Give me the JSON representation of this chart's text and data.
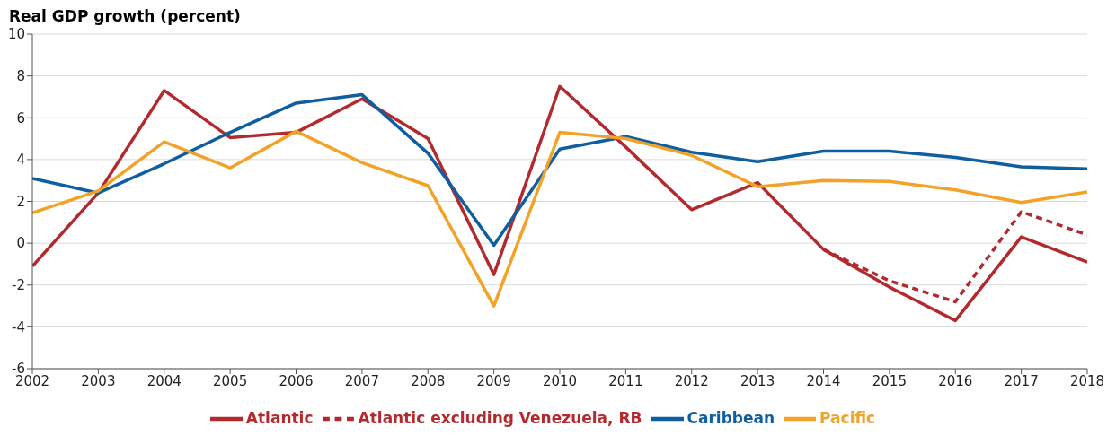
{
  "chart_data": {
    "type": "line",
    "title": "Real GDP growth (percent)",
    "x": [
      2002,
      2003,
      2004,
      2005,
      2006,
      2007,
      2008,
      2009,
      2010,
      2011,
      2012,
      2013,
      2014,
      2015,
      2016,
      2017,
      2018
    ],
    "series": [
      {
        "name": "Atlantic",
        "color": "#b22a2e",
        "values": [
          -1.1,
          2.4,
          7.3,
          5.05,
          5.3,
          6.9,
          5.0,
          -1.5,
          7.5,
          4.6,
          1.6,
          2.9,
          -0.3,
          -2.1,
          -3.7,
          0.3,
          -0.9
        ]
      },
      {
        "name": "Atlantic excluding Venezuela, RB",
        "color": "#b22a2e",
        "line_style": "dashed",
        "values": [
          null,
          null,
          null,
          null,
          null,
          null,
          null,
          null,
          null,
          null,
          null,
          null,
          -0.3,
          -1.8,
          -2.8,
          1.5,
          0.4
        ]
      },
      {
        "name": "Caribbean",
        "color": "#0f5fa0",
        "values": [
          3.1,
          2.4,
          3.8,
          5.3,
          6.7,
          7.1,
          4.3,
          -0.1,
          4.5,
          5.1,
          4.35,
          3.9,
          4.4,
          4.4,
          4.1,
          3.65,
          3.55
        ]
      },
      {
        "name": "Pacific",
        "color": "#f2a226",
        "values": [
          1.45,
          2.5,
          4.85,
          3.6,
          5.35,
          3.85,
          2.75,
          -3.0,
          5.3,
          5.0,
          4.2,
          2.7,
          3.0,
          2.95,
          2.55,
          1.95,
          2.45
        ]
      }
    ],
    "xlim": [
      2002,
      2018
    ],
    "xticks": [
      2002,
      2003,
      2004,
      2005,
      2006,
      2007,
      2008,
      2009,
      2010,
      2011,
      2012,
      2013,
      2014,
      2015,
      2016,
      2017,
      2018
    ],
    "ylim": [
      -6,
      10
    ],
    "yticks": [
      -6,
      -4,
      -2,
      0,
      2,
      4,
      6,
      8,
      10
    ],
    "grid": "y",
    "legend": "bottom",
    "marker": "none",
    "line_style": "solid"
  }
}
